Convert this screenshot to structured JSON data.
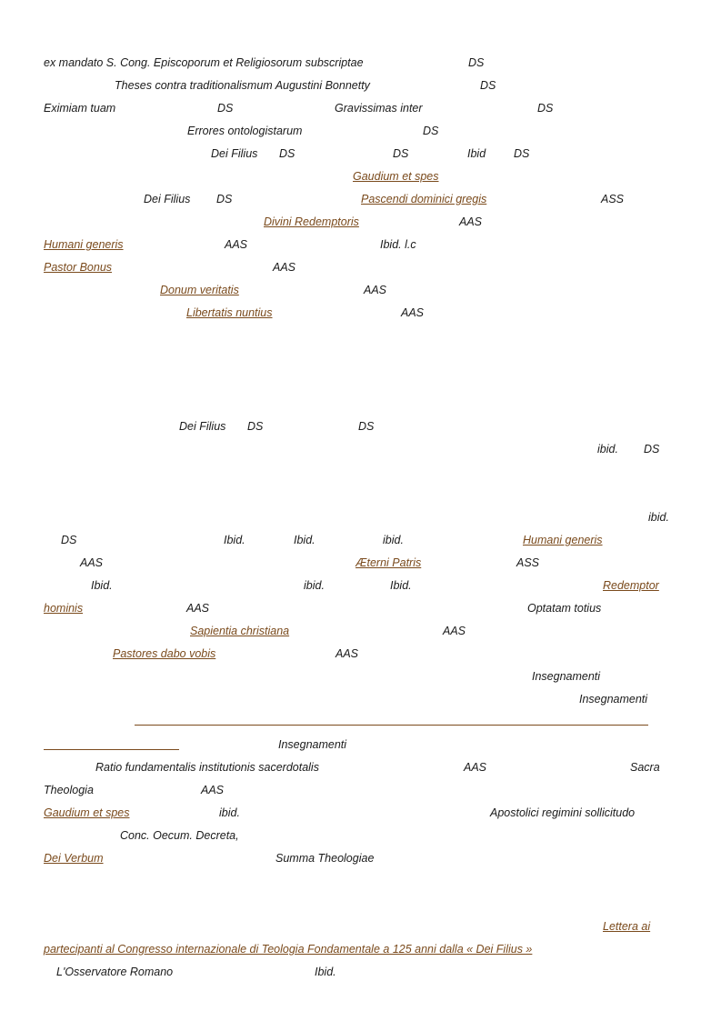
{
  "fragments": [
    {
      "t": "ex mandato S. Cong. Episcoporum et Religiosorum subscriptae",
      "link": false
    },
    {
      "t": "DS",
      "link": false
    },
    {
      "t": "Theses contra traditionalismum Augustini Bonnetty",
      "link": false
    },
    {
      "t": "DS",
      "link": false
    },
    {
      "t": "Eximiam tuam",
      "link": false
    },
    {
      "t": "DS",
      "link": false
    },
    {
      "t": "Gravissimas inter",
      "link": false
    },
    {
      "t": "DS",
      "link": false
    },
    {
      "t": "Errores ontologistarum",
      "link": false
    },
    {
      "t": "DS",
      "link": false
    },
    {
      "t": "Dei Filius",
      "link": false
    },
    {
      "t": "DS",
      "link": false
    },
    {
      "t": "DS",
      "link": false
    },
    {
      "t": "Ibid",
      "link": false
    },
    {
      "t": "DS",
      "link": false
    },
    {
      "t": "Gaudium et spes",
      "link": true
    },
    {
      "t": "Dei Filius",
      "link": false
    },
    {
      "t": "DS",
      "link": false
    },
    {
      "t": "Pascendi dominici gregis",
      "link": true
    },
    {
      "t": "ASS",
      "link": false
    },
    {
      "t": "Divini Redemptoris",
      "link": true
    },
    {
      "t": "AAS",
      "link": false
    },
    {
      "t": "Humani generis",
      "link": true
    },
    {
      "t": "AAS",
      "link": false
    },
    {
      "t": "Ibid.  l.c",
      "link": false
    },
    {
      "t": "Pastor Bonus",
      "link": true
    },
    {
      "t": "AAS",
      "link": false
    },
    {
      "t": "Donum veritatis",
      "link": true
    },
    {
      "t": "AAS",
      "link": false
    },
    {
      "t": "Libertatis nuntius",
      "link": true
    },
    {
      "t": "AAS",
      "link": false
    },
    {
      "t": "Dei Filius",
      "link": false
    },
    {
      "t": "DS",
      "link": false
    },
    {
      "t": "DS",
      "link": false
    },
    {
      "t": "ibid.",
      "link": false
    },
    {
      "t": "DS",
      "link": false
    },
    {
      "t": "ibid.",
      "link": false
    },
    {
      "t": "DS",
      "link": false
    },
    {
      "t": "Ibid.",
      "link": false
    },
    {
      "t": "Ibid.",
      "link": false
    },
    {
      "t": "ibid.",
      "link": false
    },
    {
      "t": "Humani generis",
      "link": true
    },
    {
      "t": "AAS",
      "link": false
    },
    {
      "t": "Æterni Patris",
      "link": true
    },
    {
      "t": "ASS",
      "link": false
    },
    {
      "t": "Ibid.",
      "link": false
    },
    {
      "t": "ibid.",
      "link": false
    },
    {
      "t": "Ibid.",
      "link": false
    },
    {
      "t": "Redemptor",
      "link": true
    },
    {
      "t": "hominis",
      "link": true
    },
    {
      "t": "AAS",
      "link": false
    },
    {
      "t": "Optatam totius",
      "link": false
    },
    {
      "t": "Sapientia christiana",
      "link": true
    },
    {
      "t": "AAS",
      "link": false
    },
    {
      "t": "Pastores dabo vobis",
      "link": true
    },
    {
      "t": "AAS",
      "link": false
    },
    {
      "t": "Insegnamenti",
      "link": false
    },
    {
      "t": "Insegnamenti",
      "link": false
    },
    {
      "t": "Insegnamenti",
      "link": false
    },
    {
      "t": "Ratio fundamentalis institutionis sacerdotalis",
      "link": false
    },
    {
      "t": "AAS",
      "link": false
    },
    {
      "t": "Sacra",
      "link": false
    },
    {
      "t": "Theologia",
      "link": false
    },
    {
      "t": "AAS",
      "link": false
    },
    {
      "t": "Gaudium et spes",
      "link": true
    },
    {
      "t": "ibid.",
      "link": false
    },
    {
      "t": "Apostolici regimini sollicitudo",
      "link": false
    },
    {
      "t": "Conc. Oecum. Decreta,",
      "link": false
    },
    {
      "t": "Dei Verbum",
      "link": true
    },
    {
      "t": "Summa Theologiae",
      "link": false
    },
    {
      "t": "Lettera ai",
      "link": true
    },
    {
      "t": "partecipanti al Congresso internazionale di Teologia Fondamentale a 125 anni dalla « Dei Filius »",
      "link": true
    },
    {
      "t": "L'Osservatore Romano",
      "link": false
    },
    {
      "t": "Ibid.",
      "link": false
    }
  ]
}
